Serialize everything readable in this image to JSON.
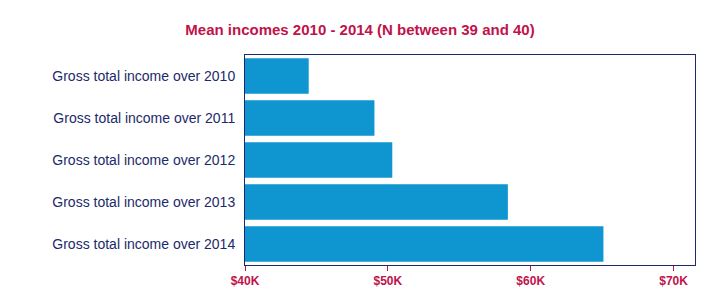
{
  "chart_data": {
    "type": "bar",
    "orientation": "horizontal",
    "title": "Mean incomes 2010 - 2014 (N between 39 and 40)",
    "categories": [
      "Gross total income over 2010",
      "Gross total income over 2011",
      "Gross total income over 2012",
      "Gross total income over 2013",
      "Gross total income over 2014"
    ],
    "values": [
      44460,
      49060,
      50310,
      58400,
      65090
    ],
    "color": "#0f95d0",
    "xlim": [
      40000,
      71500
    ],
    "xticks": [
      {
        "value": 40000,
        "label": "$40K"
      },
      {
        "value": 50000,
        "label": "$50K"
      },
      {
        "value": 60000,
        "label": "$60K"
      },
      {
        "value": 70000,
        "label": "$70K"
      }
    ],
    "grid": false
  }
}
